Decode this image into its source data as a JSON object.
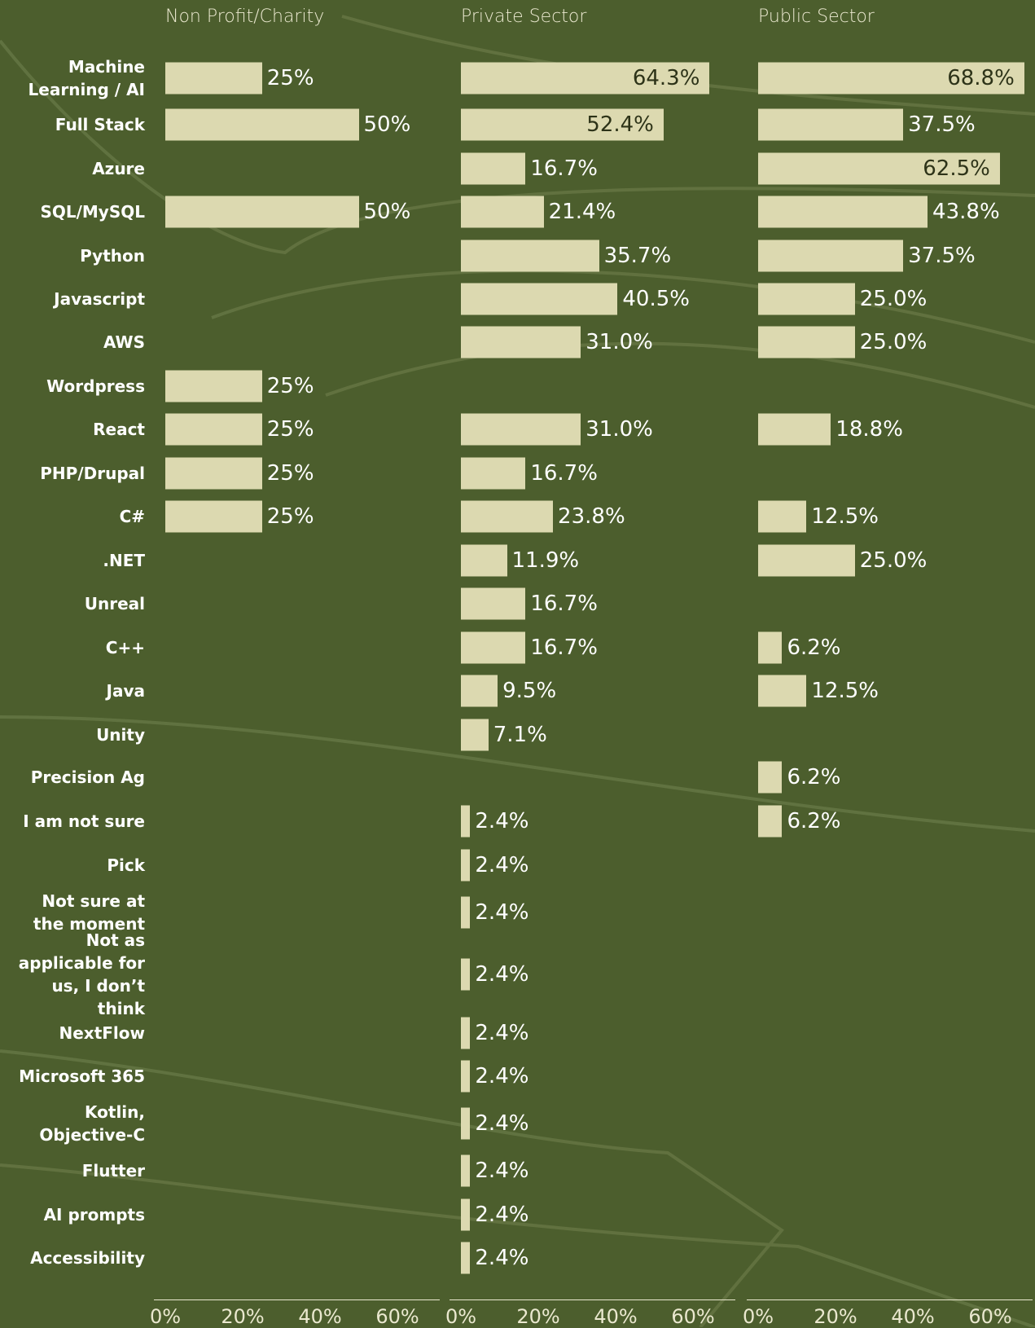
{
  "chart_data": {
    "type": "bar",
    "orientation": "horizontal",
    "categories": [
      "Machine Learning / AI",
      "Full Stack",
      "Azure",
      "SQL/MySQL",
      "Python",
      "Javascript",
      "AWS",
      "Wordpress",
      "React",
      "PHP/Drupal",
      "C#",
      ".NET",
      "Unreal",
      "C++",
      "Java",
      "Unity",
      "Precision Ag",
      "I am not sure",
      "Pick",
      "Not sure at the moment",
      "Not as applicable for us, I don’t think",
      "NextFlow",
      "Microsoft 365",
      "Kotlin, Objective-C",
      "Flutter",
      "AI prompts",
      "Accessibility"
    ],
    "series": [
      {
        "name": "Non Profit/Charity",
        "color": "#dcd9b0",
        "values": [
          25,
          50,
          null,
          50,
          null,
          null,
          null,
          25,
          25,
          25,
          25,
          null,
          null,
          null,
          null,
          null,
          null,
          null,
          null,
          null,
          null,
          null,
          null,
          null,
          null,
          null,
          null
        ],
        "value_labels": [
          "25%",
          "50%",
          null,
          "50%",
          null,
          null,
          null,
          "25%",
          "25%",
          "25%",
          "25%",
          null,
          null,
          null,
          null,
          null,
          null,
          null,
          null,
          null,
          null,
          null,
          null,
          null,
          null,
          null,
          null
        ]
      },
      {
        "name": "Private Sector",
        "color": "#dcd9b0",
        "values": [
          64.3,
          52.4,
          16.7,
          21.4,
          35.7,
          40.5,
          31,
          null,
          31,
          16.7,
          23.8,
          11.9,
          16.7,
          16.7,
          9.5,
          7.1,
          null,
          2.4,
          2.4,
          2.4,
          2.4,
          2.4,
          2.4,
          2.4,
          2.4,
          2.4,
          2.4
        ],
        "value_labels": [
          "64.3%",
          "52.4%",
          "16.7%",
          "21.4%",
          "35.7%",
          "40.5%",
          "31.0%",
          null,
          "31.0%",
          "16.7%",
          "23.8%",
          "11.9%",
          "16.7%",
          "16.7%",
          "9.5%",
          "7.1%",
          null,
          "2.4%",
          "2.4%",
          "2.4%",
          "2.4%",
          "2.4%",
          "2.4%",
          "2.4%",
          "2.4%",
          "2.4%",
          "2.4%"
        ]
      },
      {
        "name": "Public Sector",
        "color": "#dcd9b0",
        "values": [
          68.8,
          37.5,
          62.5,
          43.8,
          37.5,
          25,
          25,
          null,
          18.8,
          null,
          12.5,
          25,
          null,
          6.2,
          12.5,
          null,
          6.2,
          6.2,
          null,
          null,
          null,
          null,
          null,
          null,
          null,
          null,
          null
        ],
        "value_labels": [
          "68.8%",
          "37.5%",
          "62.5%",
          "43.8%",
          "37.5%",
          "25.0%",
          "25.0%",
          null,
          "18.8%",
          null,
          "12.5%",
          "25.0%",
          null,
          "6.2%",
          "12.5%",
          null,
          "6.2%",
          "6.2%",
          null,
          null,
          null,
          null,
          null,
          null,
          null,
          null,
          null
        ]
      }
    ],
    "xlim": [
      0,
      71
    ],
    "xticks": [
      {
        "value": 0,
        "label": "0%"
      },
      {
        "value": 20,
        "label": "20%"
      },
      {
        "value": 40,
        "label": "40%"
      },
      {
        "value": 60,
        "label": "60%"
      }
    ]
  }
}
